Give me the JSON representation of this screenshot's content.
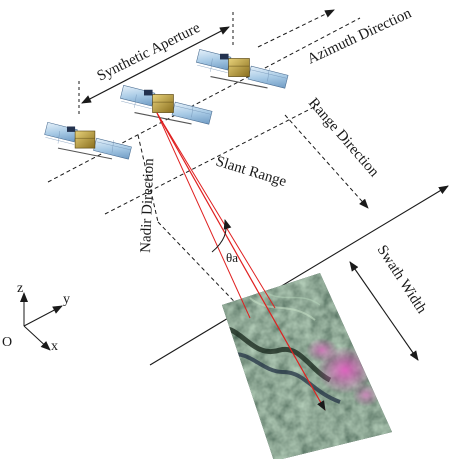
{
  "labels": {
    "synthetic_aperture": "Synthetic Aperture",
    "azimuth_direction": "Azimuth Direction",
    "range_direction": "Range Direction",
    "slant_range": "Slant Range",
    "nadir_direction": "Nadir Direction",
    "swath_width": "Swath Width",
    "theta_a": "θa"
  },
  "axes": {
    "origin": "O",
    "x": "x",
    "y": "y",
    "z": "z"
  },
  "satellites": [
    {
      "position": "front"
    },
    {
      "position": "middle"
    },
    {
      "position": "rear"
    }
  ],
  "colors": {
    "slant_range_lines": "#e02020",
    "dashed_lines": "#1a1a1a",
    "solar_panel": "#a9cbe6",
    "satellite_body": "#c9a93a",
    "terrain_dark": "#243a2c",
    "terrain_highlight": "#c04aa0"
  },
  "icons": [
    "satellite-icon",
    "sar-terrain-image"
  ]
}
